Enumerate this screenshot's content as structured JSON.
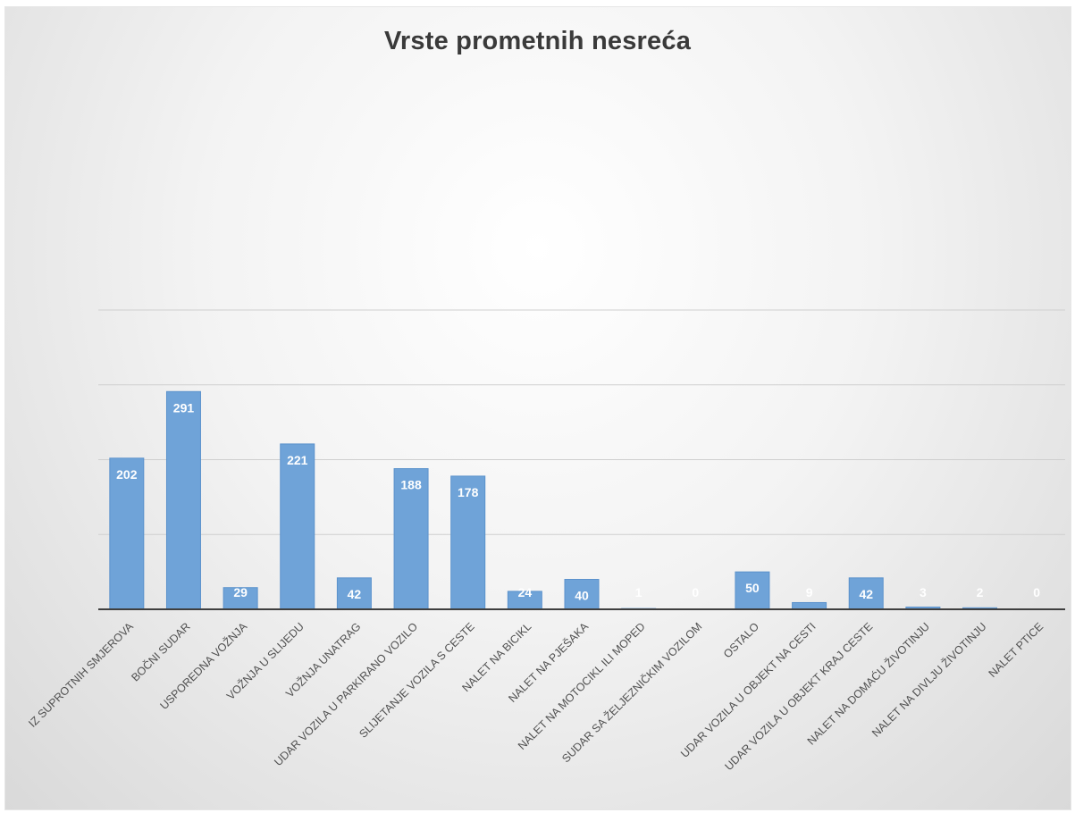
{
  "chart_data": {
    "type": "bar",
    "title": "Vrste prometnih nesreća",
    "xlabel": "",
    "ylabel": "",
    "ylim": [
      0,
      400
    ],
    "grid": true,
    "legend": "none",
    "bar_color": "#6fa3d8",
    "categories": [
      "IZ SUPROTNIH SMJEROVA",
      "BOČNI SUDAR",
      "USPOREDNA VOŽNJA",
      "VOŽNJA U SLIJEDU",
      "VOŽNJA UNATRAG",
      "UDAR VOZILA U PARKIRANO VOZILO",
      "SLIJETANJE VOZILA S CESTE",
      "NALET NA BICIKL",
      "NALET NA PJEŠAKA",
      "NALET NA MOTOCIKL ILI MOPED",
      "SUDAR SA ŽELJEZNIČKIM VOZILOM",
      "OSTALO",
      "UDAR VOZILA U OBJEKT NA CESTI",
      "UDAR VOZILA U OBJEKT KRAJ CESTE",
      "NALET NA DOMAĆU ŽIVOTINJU",
      "NALET NA DIVLJU ŽIVOTINJU",
      "NALET PTICE"
    ],
    "values": [
      202,
      291,
      29,
      221,
      42,
      188,
      178,
      24,
      40,
      1,
      0,
      50,
      9,
      42,
      3,
      2,
      0
    ]
  }
}
